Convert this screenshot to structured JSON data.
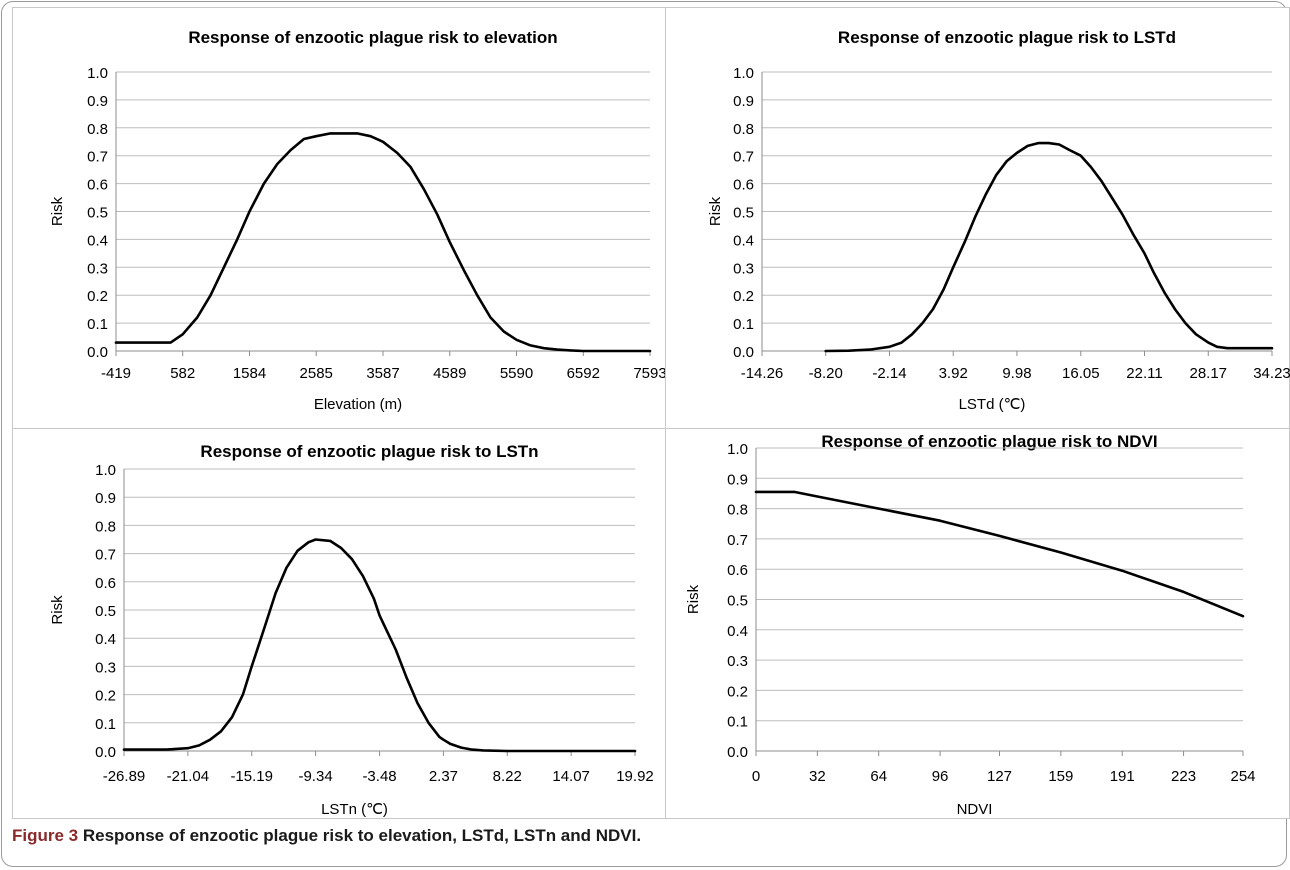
{
  "caption": {
    "label": "Figure 3",
    "text": "Response of enzootic plague risk to elevation, LSTd, LSTn and NDVI."
  },
  "colors": {
    "line": "#000000",
    "grid": "#bdbdbd",
    "border": "#c8c8c8"
  },
  "chart_data": [
    {
      "type": "line",
      "title": "Response of enzootic plague risk to elevation",
      "xlabel": "Elevation (m)",
      "ylabel": "Risk",
      "ylim": [
        0,
        1.0
      ],
      "yticks": [
        "0.0",
        "0.1",
        "0.2",
        "0.3",
        "0.4",
        "0.5",
        "0.6",
        "0.7",
        "0.8",
        "0.9",
        "1.0"
      ],
      "xticks": [
        "-419",
        "582",
        "1584",
        "2585",
        "3587",
        "4589",
        "5590",
        "6592",
        "7593"
      ],
      "grid": "horizontal",
      "series": [
        {
          "x": [
            -419,
            100,
            400,
            582,
            800,
            1000,
            1200,
            1400,
            1584,
            1800,
            2000,
            2200,
            2400,
            2585,
            2800,
            3000,
            3200,
            3400,
            3587,
            3800,
            4000,
            4200,
            4400,
            4589,
            4800,
            5000,
            5200,
            5400,
            5590,
            5800,
            6000,
            6200,
            6400,
            6592,
            7000,
            7593
          ],
          "y": [
            0.03,
            0.03,
            0.03,
            0.06,
            0.12,
            0.2,
            0.3,
            0.4,
            0.5,
            0.6,
            0.67,
            0.72,
            0.76,
            0.77,
            0.78,
            0.78,
            0.78,
            0.77,
            0.75,
            0.71,
            0.66,
            0.58,
            0.49,
            0.39,
            0.29,
            0.2,
            0.12,
            0.07,
            0.04,
            0.02,
            0.01,
            0.005,
            0.002,
            0.0,
            0.0,
            0.0
          ]
        }
      ]
    },
    {
      "type": "line",
      "title": "Response of enzootic plague risk to LSTd",
      "xlabel": "LSTd (℃)",
      "ylabel": "Risk",
      "ylim": [
        0,
        1.0
      ],
      "yticks": [
        "0.0",
        "0.1",
        "0.2",
        "0.3",
        "0.4",
        "0.5",
        "0.6",
        "0.7",
        "0.8",
        "0.9",
        "1.0"
      ],
      "xticks": [
        "-14.26",
        "-8.20",
        "-2.14",
        "3.92",
        "9.98",
        "16.05",
        "22.11",
        "28.17",
        "34.23"
      ],
      "grid": "horizontal",
      "series": [
        {
          "x": [
            -8.2,
            -6,
            -4,
            -2.14,
            -1,
            0,
            1,
            2,
            3,
            3.92,
            5,
            6,
            7,
            8,
            9,
            9.98,
            11,
            12,
            13,
            14,
            15,
            16.05,
            17,
            18,
            19,
            20,
            21,
            22.11,
            23,
            24,
            25,
            26,
            27,
            28.17,
            29,
            30,
            31,
            32,
            34.23
          ],
          "y": [
            0.0,
            0.001,
            0.005,
            0.015,
            0.03,
            0.06,
            0.1,
            0.15,
            0.22,
            0.3,
            0.39,
            0.48,
            0.56,
            0.63,
            0.68,
            0.71,
            0.735,
            0.745,
            0.745,
            0.74,
            0.72,
            0.7,
            0.66,
            0.61,
            0.55,
            0.49,
            0.42,
            0.35,
            0.28,
            0.21,
            0.15,
            0.1,
            0.06,
            0.03,
            0.015,
            0.01,
            0.01,
            0.01,
            0.01
          ]
        }
      ]
    },
    {
      "type": "line",
      "title": "Response of enzootic plague risk to LSTn",
      "xlabel": "LSTn (℃)",
      "ylabel": "Risk",
      "ylim": [
        0,
        1.0
      ],
      "yticks": [
        "0.0",
        "0.1",
        "0.2",
        "0.3",
        "0.4",
        "0.5",
        "0.6",
        "0.7",
        "0.8",
        "0.9",
        "1.0"
      ],
      "xticks": [
        "-26.89",
        "-21.04",
        "-15.19",
        "-9.34",
        "-3.48",
        "2.37",
        "8.22",
        "14.07",
        "19.92"
      ],
      "grid": "horizontal",
      "series": [
        {
          "x": [
            -26.89,
            -23,
            -21.04,
            -20,
            -19,
            -18,
            -17,
            -16,
            -15.19,
            -14,
            -13,
            -12,
            -11,
            -10,
            -9.34,
            -8,
            -7,
            -6,
            -5,
            -4,
            -3.48,
            -2,
            -1,
            0,
            1,
            2,
            2.37,
            3,
            4,
            5,
            6,
            8.22,
            14.07,
            19.92
          ],
          "y": [
            0.005,
            0.005,
            0.01,
            0.02,
            0.04,
            0.07,
            0.12,
            0.2,
            0.3,
            0.44,
            0.56,
            0.65,
            0.71,
            0.74,
            0.75,
            0.745,
            0.72,
            0.68,
            0.62,
            0.54,
            0.48,
            0.36,
            0.26,
            0.17,
            0.1,
            0.05,
            0.04,
            0.025,
            0.012,
            0.005,
            0.002,
            0.0,
            0.0,
            0.0
          ]
        }
      ]
    },
    {
      "type": "line",
      "title": "Response of enzootic plague risk to NDVI",
      "xlabel": "NDVI",
      "ylabel": "Risk",
      "ylim": [
        0,
        1.0
      ],
      "yticks": [
        "0.0",
        "0.1",
        "0.2",
        "0.3",
        "0.4",
        "0.5",
        "0.6",
        "0.7",
        "0.8",
        "0.9",
        "1.0"
      ],
      "xticks": [
        "0",
        "32",
        "64",
        "96",
        "127",
        "159",
        "191",
        "223",
        "254"
      ],
      "grid": "horizontal",
      "series": [
        {
          "x": [
            0,
            20,
            32,
            64,
            96,
            127,
            159,
            191,
            223,
            254
          ],
          "y": [
            0.855,
            0.855,
            0.84,
            0.8,
            0.76,
            0.71,
            0.655,
            0.595,
            0.525,
            0.445
          ]
        }
      ]
    }
  ]
}
